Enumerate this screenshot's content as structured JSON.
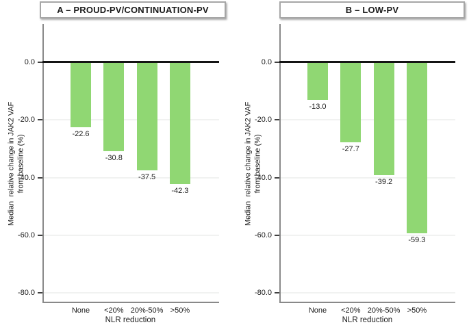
{
  "chart_data": [
    {
      "type": "bar",
      "title": "A – PROUD-PV/CONTINUATION-PV",
      "categories": [
        "None",
        "<20%",
        "20%-50%",
        ">50%"
      ],
      "values": [
        -22.6,
        -30.8,
        -37.5,
        -42.3
      ],
      "data_labels": [
        "-22.6",
        "-30.8",
        "-37.5",
        "-42.3"
      ],
      "xlabel": "NLR reduction",
      "ylabel_lines": [
        "Median  relative change in JAK2 VAF",
        "from baseline (%)"
      ],
      "yticks": [
        {
          "value": 0,
          "label": "0.0"
        },
        {
          "value": -20,
          "label": "-20.0"
        },
        {
          "value": -40,
          "label": "-40.0"
        },
        {
          "value": -60,
          "label": "-60.0"
        },
        {
          "value": -80,
          "label": "-80.0"
        }
      ],
      "ylim": [
        -80,
        13
      ],
      "grid": true,
      "legend": null,
      "colors": {
        "bar": "#90d773",
        "axis_line": "#898989",
        "tick": "#404040",
        "zero_line": "#141414",
        "gridline": "#f1f2f1",
        "text": "#1a1a1a",
        "title_border": "#a6a6a6"
      }
    },
    {
      "type": "bar",
      "title": "B – LOW-PV",
      "categories": [
        "None",
        "<20%",
        "20%-50%",
        ">50%"
      ],
      "values": [
        -13.0,
        -27.7,
        -39.2,
        -59.3
      ],
      "data_labels": [
        "-13.0",
        "-27.7",
        "-39.2",
        "-59.3"
      ],
      "xlabel": "NLR reduction",
      "ylabel_lines": [
        "Median  relative change in JAK2 VAF",
        "from baseline (%)"
      ],
      "yticks": [
        {
          "value": 0,
          "label": "0.0"
        },
        {
          "value": -20,
          "label": "-20.0"
        },
        {
          "value": -40,
          "label": "-40.0"
        },
        {
          "value": -60,
          "label": "-60.0"
        },
        {
          "value": -80,
          "label": "-80.0"
        }
      ],
      "ylim": [
        -80,
        13
      ],
      "grid": true,
      "legend": null,
      "colors": {
        "bar": "#90d773",
        "axis_line": "#898989",
        "tick": "#404040",
        "zero_line": "#141414",
        "gridline": "#f1f2f1",
        "text": "#1a1a1a",
        "title_border": "#a6a6a6"
      }
    }
  ]
}
